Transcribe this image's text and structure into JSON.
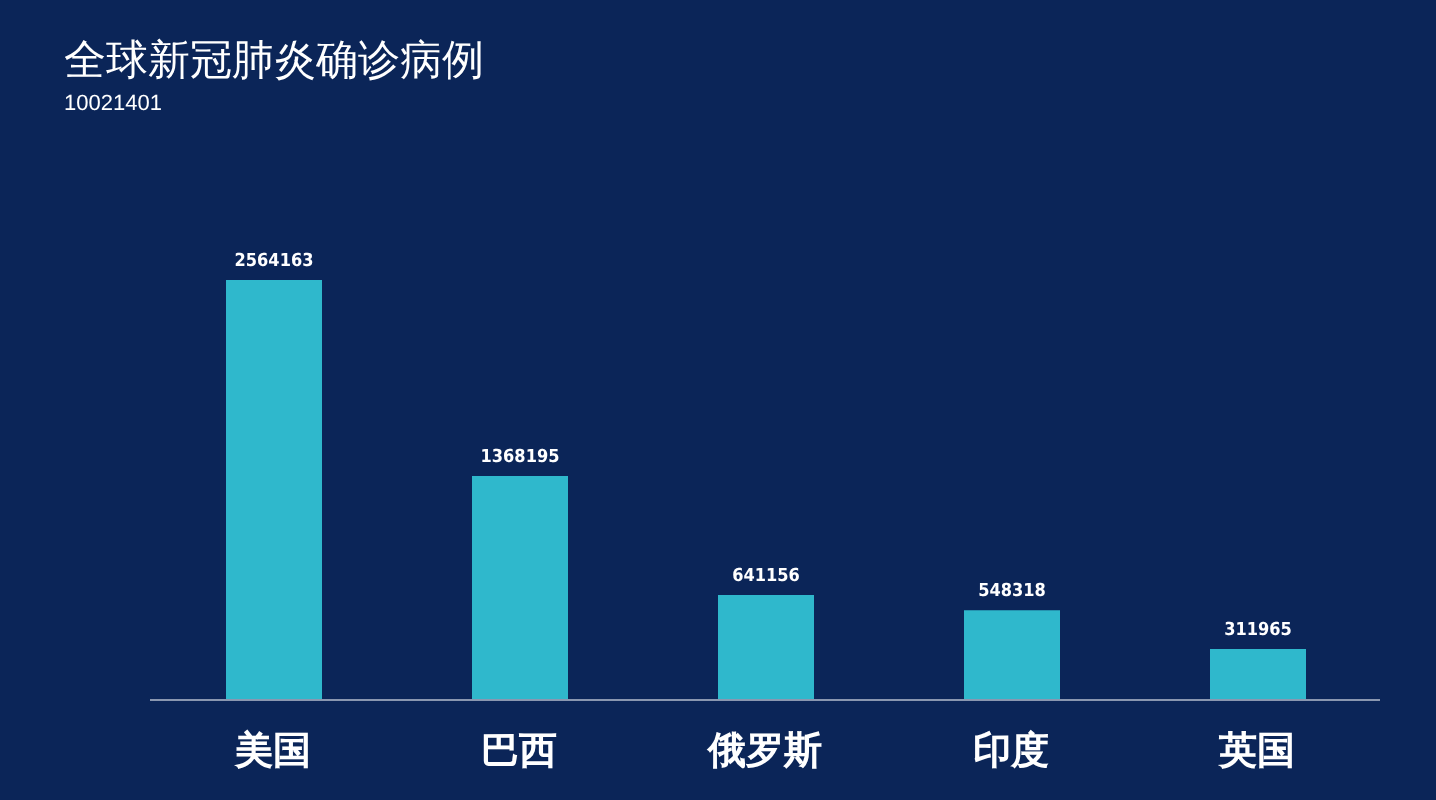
{
  "chart_data": {
    "type": "bar",
    "title": "全球新冠肺炎确诊病例",
    "subtitle": "10021401",
    "categories": [
      "美国",
      "巴西",
      "俄罗斯",
      "印度",
      "英国"
    ],
    "values": [
      2564163,
      1368195,
      641156,
      548318,
      311965
    ],
    "color": "#2fb8cc",
    "data_labels": true,
    "grid": false,
    "legend": false
  }
}
